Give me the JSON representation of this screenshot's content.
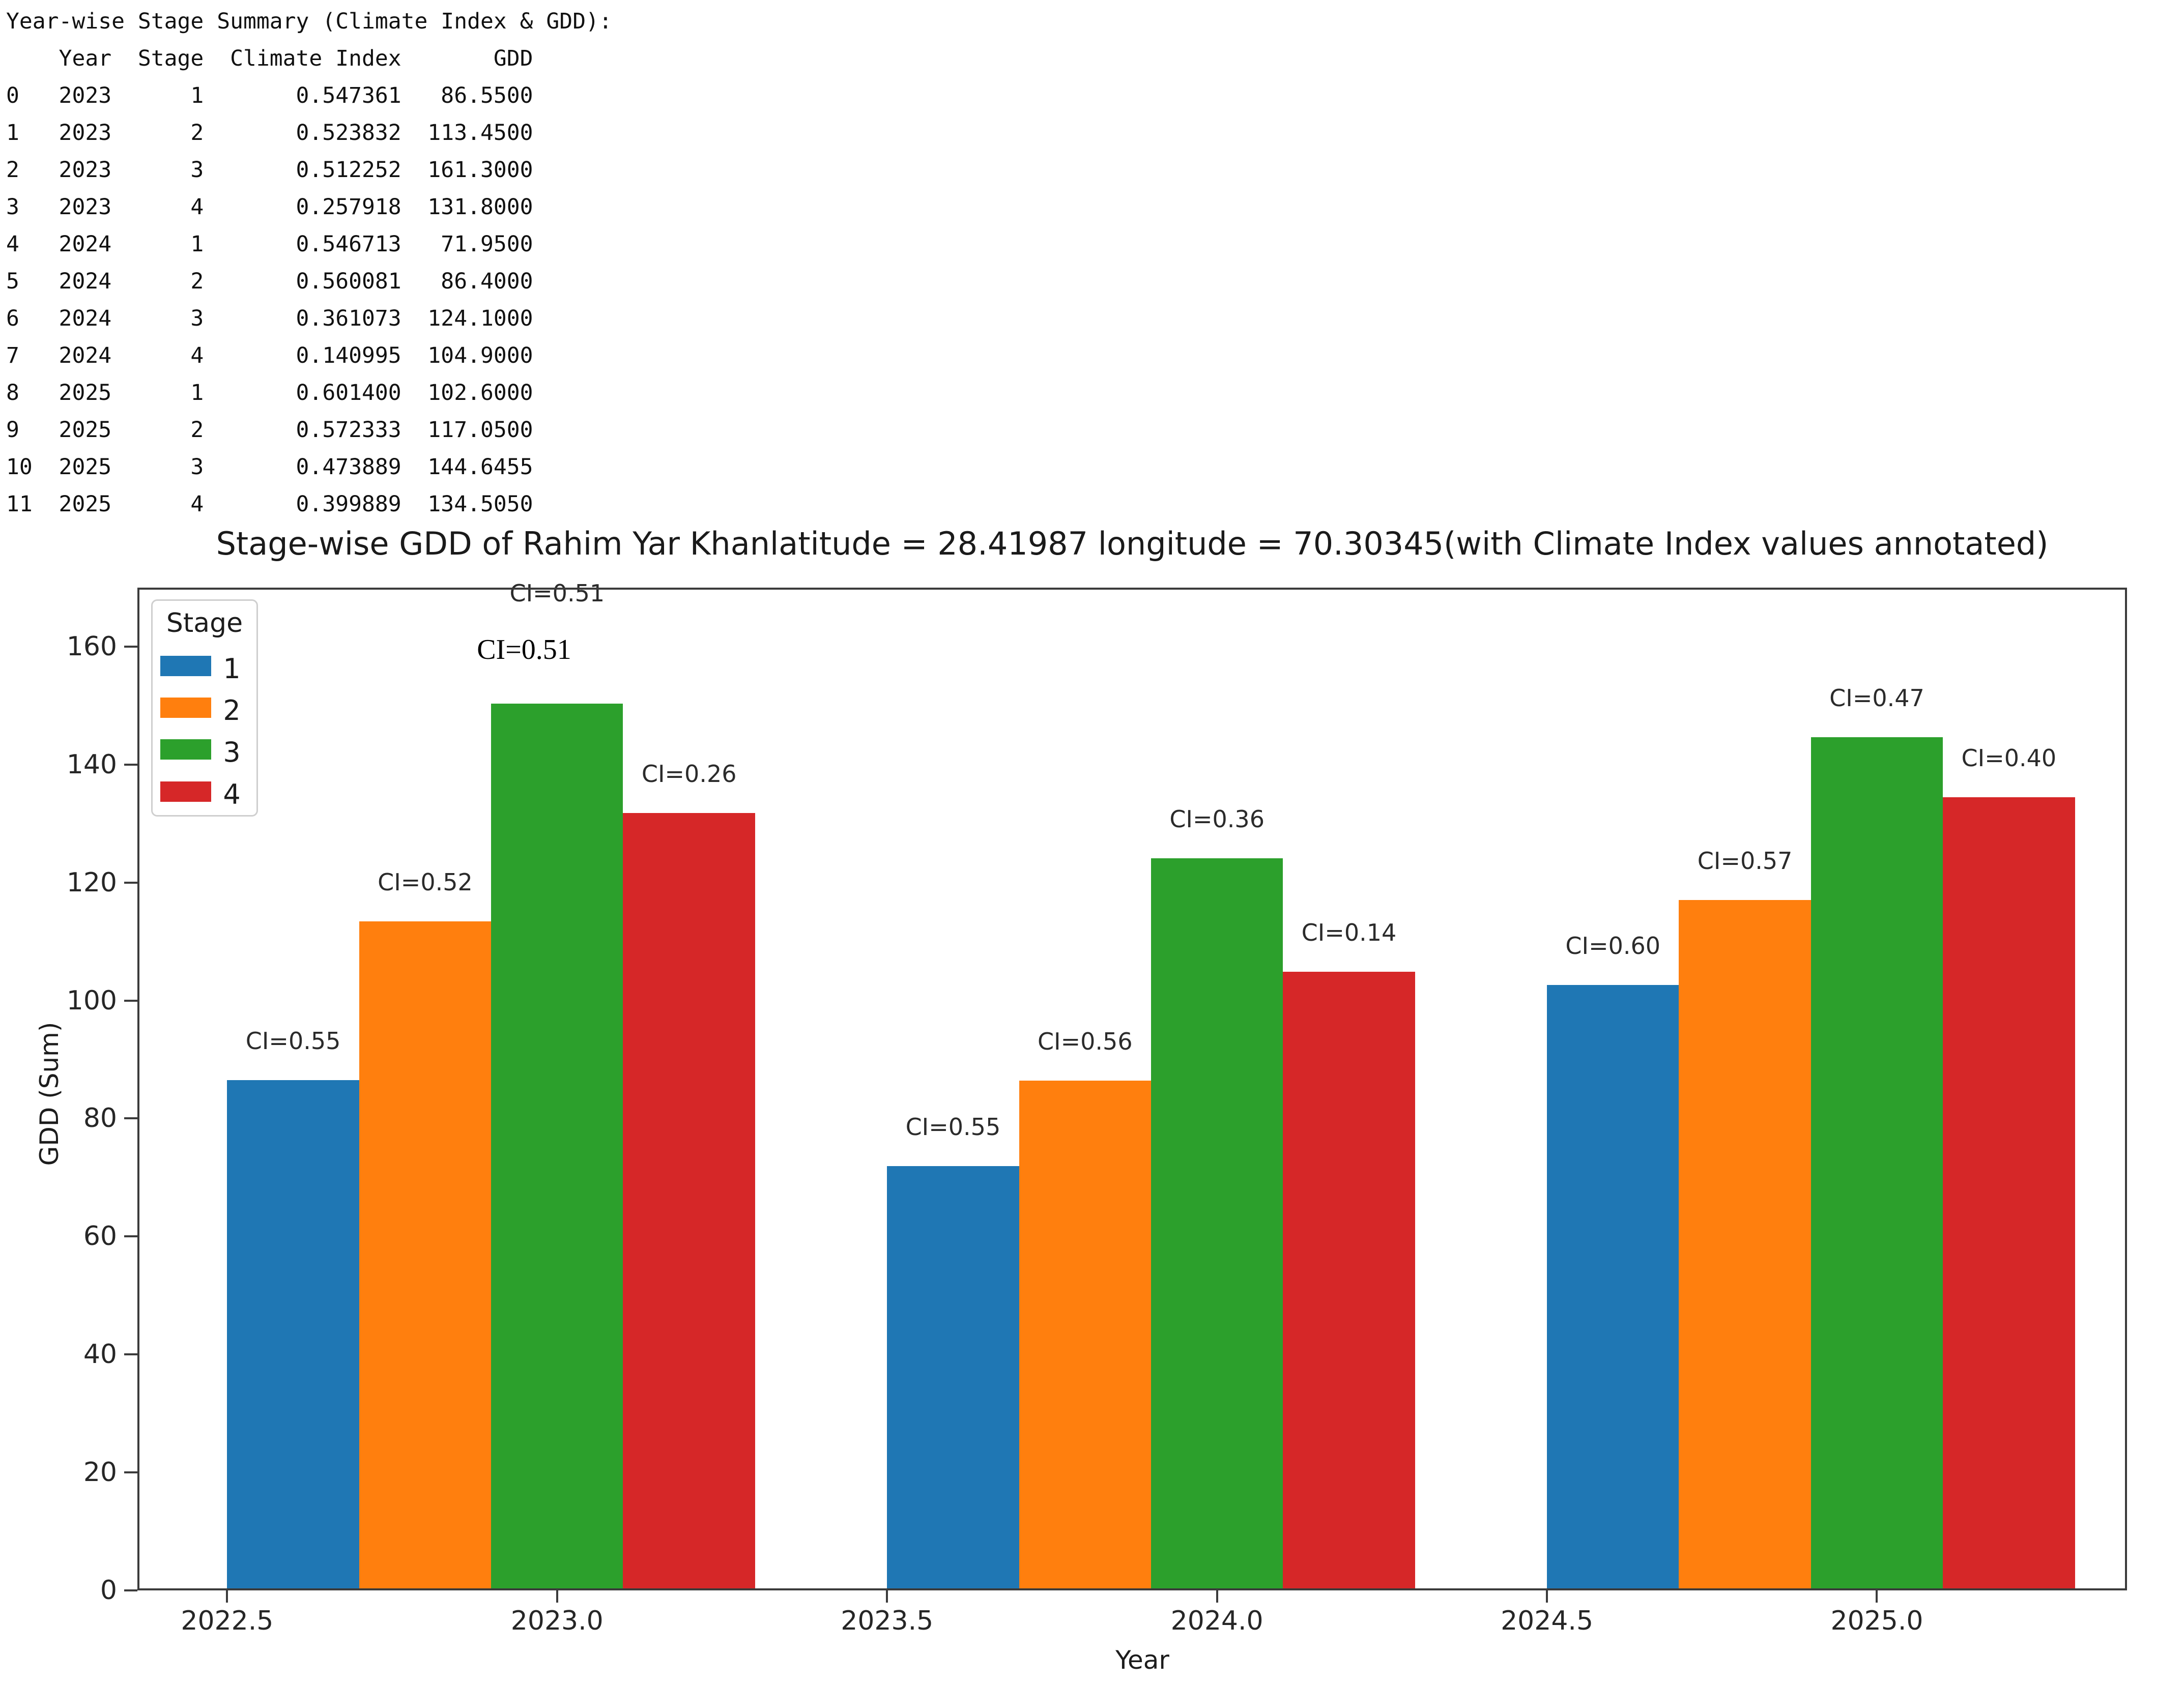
{
  "console": {
    "title": "Year-wise Stage Summary (Climate Index & GDD):",
    "columns": [
      "Year",
      "Stage",
      "Climate Index",
      "GDD"
    ],
    "rows": [
      [
        "0",
        "2023",
        "1",
        "0.547361",
        "86.5500"
      ],
      [
        "1",
        "2023",
        "2",
        "0.523832",
        "113.4500"
      ],
      [
        "2",
        "2023",
        "3",
        "0.512252",
        "161.3000"
      ],
      [
        "3",
        "2023",
        "4",
        "0.257918",
        "131.8000"
      ],
      [
        "4",
        "2024",
        "1",
        "0.546713",
        "71.9500"
      ],
      [
        "5",
        "2024",
        "2",
        "0.560081",
        "86.4000"
      ],
      [
        "6",
        "2024",
        "3",
        "0.361073",
        "124.1000"
      ],
      [
        "7",
        "2024",
        "4",
        "0.140995",
        "104.9000"
      ],
      [
        "8",
        "2025",
        "1",
        "0.601400",
        "102.6000"
      ],
      [
        "9",
        "2025",
        "2",
        "0.572333",
        "117.0500"
      ],
      [
        "10",
        "2025",
        "3",
        "0.473889",
        "144.6455"
      ],
      [
        "11",
        "2025",
        "4",
        "0.399889",
        "134.5050"
      ]
    ]
  },
  "figure": {
    "title": "Stage-wise GDD of Rahim Yar Khanlatitude = 28.41987 longitude = 70.30345(with Climate Index values annotated)",
    "xlabel": "Year",
    "ylabel": "GDD (Sum)",
    "legend": {
      "title": "Stage",
      "items": [
        {
          "label": "1",
          "color": "#1f77b4"
        },
        {
          "label": "2",
          "color": "#ff7f0e"
        },
        {
          "label": "3",
          "color": "#2ca02c"
        },
        {
          "label": "4",
          "color": "#d62728"
        }
      ]
    },
    "extra_serif_annotation": "CI=0.51"
  },
  "chart_data": {
    "type": "bar",
    "title": "Stage-wise GDD of Rahim Yar Khanlatitude = 28.41987 longitude = 70.30345(with Climate Index values annotated)",
    "xlabel": "Year",
    "ylabel": "GDD (Sum)",
    "grid": false,
    "legend_title": "Stage",
    "legend_position": "upper left",
    "categories": [
      2023,
      2024,
      2025
    ],
    "xticks": [
      "2022.5",
      "2023.0",
      "2023.5",
      "2024.0",
      "2024.5",
      "2025.0"
    ],
    "yticks": [
      "0",
      "20",
      "40",
      "60",
      "80",
      "100",
      "120",
      "140",
      "160"
    ],
    "ylim": [
      0,
      170
    ],
    "xlim": [
      2022.364,
      2025.379
    ],
    "bar_width_years": 0.2,
    "series": [
      {
        "name": "1",
        "color": "#1f77b4",
        "offset_years": -0.4,
        "values": [
          86.55,
          71.95,
          102.6
        ],
        "climate_index": [
          0.547361,
          0.546713,
          0.6014
        ],
        "bar_labels": [
          "CI=0.55",
          "CI=0.55",
          "CI=0.60"
        ],
        "label_modes": [
          "normal",
          "normal",
          "normal"
        ]
      },
      {
        "name": "2",
        "color": "#ff7f0e",
        "offset_years": -0.2,
        "values": [
          113.45,
          86.4,
          117.05
        ],
        "climate_index": [
          0.523832,
          0.560081,
          0.572333
        ],
        "bar_labels": [
          "CI=0.52",
          "CI=0.56",
          "CI=0.57"
        ],
        "label_modes": [
          "normal",
          "normal",
          "normal"
        ]
      },
      {
        "name": "3",
        "color": "#2ca02c",
        "offset_years": 0.0,
        "values": [
          161.3,
          124.1,
          144.6455
        ],
        "rendered_values": [
          150.3,
          124.1,
          144.6455
        ],
        "climate_index": [
          0.512252,
          0.361073,
          0.473889
        ],
        "bar_labels": [
          "CI=0.51",
          "CI=0.36",
          "CI=0.47"
        ],
        "label_modes": [
          "clipped-top",
          "normal",
          "normal"
        ]
      },
      {
        "name": "4",
        "color": "#d62728",
        "offset_years": 0.2,
        "values": [
          131.8,
          104.9,
          134.505
        ],
        "climate_index": [
          0.257918,
          0.140995,
          0.399889
        ],
        "bar_labels": [
          "CI=0.26",
          "CI=0.14",
          "CI=0.40"
        ],
        "label_modes": [
          "normal",
          "normal",
          "normal"
        ]
      }
    ]
  }
}
